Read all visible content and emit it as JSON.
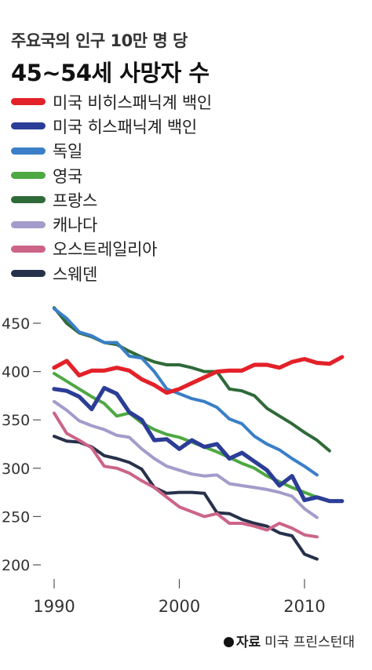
{
  "title_line1": "주요국의 인구 10만 명 당",
  "title_line2": "45~54세 사망자 수",
  "source_label": "자료",
  "source_text": "미국 프린스턴대",
  "chart_data": {
    "type": "line",
    "title": "주요국의 인구 10만 명 당 45~54세 사망자 수",
    "xlim": [
      1989,
      2014
    ],
    "ylim": [
      200,
      470
    ],
    "x_ticks": [
      "1990",
      "2000",
      "2010"
    ],
    "y_ticks": [
      "450",
      "400",
      "350",
      "300",
      "250",
      "200"
    ],
    "series": [
      {
        "name": "미국 비히스패닉계 백인",
        "color": "#e32129",
        "x": [
          1990,
          1991,
          1992,
          1993,
          1994,
          1995,
          1996,
          1997,
          1998,
          1999,
          2000,
          2001,
          2002,
          2003,
          2004,
          2005,
          2006,
          2007,
          2008,
          2009,
          2010,
          2011,
          2012,
          2013
        ],
        "y": [
          404,
          411,
          396,
          401,
          401,
          404,
          401,
          392,
          386,
          378,
          382,
          388,
          394,
          400,
          401,
          401,
          407,
          407,
          404,
          410,
          413,
          409,
          408,
          415
        ]
      },
      {
        "name": "미국 히스패닉계 백인",
        "color": "#2b3d96",
        "x": [
          1990,
          1991,
          1992,
          1993,
          1994,
          1995,
          1996,
          1997,
          1998,
          1999,
          2000,
          2001,
          2002,
          2003,
          2004,
          2005,
          2006,
          2007,
          2008,
          2009,
          2010,
          2011,
          2012,
          2013
        ],
        "y": [
          382,
          380,
          374,
          361,
          383,
          377,
          358,
          350,
          329,
          330,
          320,
          329,
          322,
          325,
          310,
          316,
          307,
          298,
          282,
          292,
          267,
          270,
          266,
          266
        ]
      },
      {
        "name": "독일",
        "color": "#3a7fc7",
        "x": [
          1990,
          1991,
          1992,
          1993,
          1994,
          1995,
          1996,
          1997,
          1998,
          1999,
          2000,
          2001,
          2002,
          2003,
          2004,
          2005,
          2006,
          2007,
          2008,
          2009,
          2010,
          2011
        ],
        "y": [
          465,
          455,
          441,
          437,
          430,
          430,
          416,
          414,
          400,
          382,
          377,
          372,
          369,
          363,
          351,
          346,
          333,
          325,
          319,
          310,
          302,
          293
        ]
      },
      {
        "name": "영국",
        "color": "#4ea843",
        "x": [
          1990,
          1991,
          1992,
          1993,
          1994,
          1995,
          1996,
          1997,
          1998,
          1999,
          2000,
          2001,
          2002,
          2003,
          2004,
          2005,
          2006,
          2007,
          2008,
          2009,
          2010,
          2011
        ],
        "y": [
          398,
          390,
          382,
          374,
          367,
          354,
          357,
          347,
          340,
          335,
          332,
          327,
          322,
          317,
          311,
          305,
          300,
          292,
          286,
          280,
          275,
          270
        ]
      },
      {
        "name": "프랑스",
        "color": "#2f6a39",
        "x": [
          1990,
          1991,
          1992,
          1993,
          1994,
          1995,
          1996,
          1997,
          1998,
          1999,
          2000,
          2001,
          2002,
          2003,
          2004,
          2005,
          2006,
          2007,
          2008,
          2009,
          2010,
          2011,
          2012
        ],
        "y": [
          466,
          450,
          440,
          436,
          430,
          428,
          421,
          415,
          410,
          407,
          407,
          404,
          400,
          400,
          382,
          380,
          375,
          362,
          354,
          346,
          337,
          329,
          318
        ]
      },
      {
        "name": "캐나다",
        "color": "#a39ccb",
        "x": [
          1990,
          1991,
          1992,
          1993,
          1994,
          1995,
          1996,
          1997,
          1998,
          1999,
          2000,
          2001,
          2002,
          2003,
          2004,
          2005,
          2006,
          2007,
          2008,
          2009,
          2010,
          2011
        ],
        "y": [
          369,
          360,
          349,
          344,
          340,
          334,
          332,
          320,
          310,
          302,
          298,
          294,
          292,
          293,
          284,
          282,
          280,
          278,
          275,
          271,
          258,
          249
        ]
      },
      {
        "name": "오스트레일리아",
        "color": "#cc6488",
        "x": [
          1990,
          1991,
          1992,
          1993,
          1994,
          1995,
          1996,
          1997,
          1998,
          1999,
          2000,
          2001,
          2002,
          2003,
          2004,
          2005,
          2006,
          2007,
          2008,
          2009,
          2010,
          2011
        ],
        "y": [
          357,
          336,
          329,
          321,
          302,
          300,
          295,
          287,
          280,
          270,
          260,
          255,
          250,
          253,
          243,
          243,
          240,
          236,
          243,
          238,
          231,
          229
        ]
      },
      {
        "name": "스웨덴",
        "color": "#27314a",
        "x": [
          1990,
          1991,
          1992,
          1993,
          1994,
          1995,
          1996,
          1997,
          1998,
          1999,
          2000,
          2001,
          2002,
          2003,
          2004,
          2005,
          2006,
          2007,
          2008,
          2009,
          2010,
          2011
        ],
        "y": [
          333,
          328,
          327,
          322,
          313,
          310,
          306,
          299,
          280,
          274,
          275,
          275,
          274,
          254,
          253,
          247,
          243,
          240,
          233,
          230,
          211,
          206
        ]
      }
    ]
  }
}
